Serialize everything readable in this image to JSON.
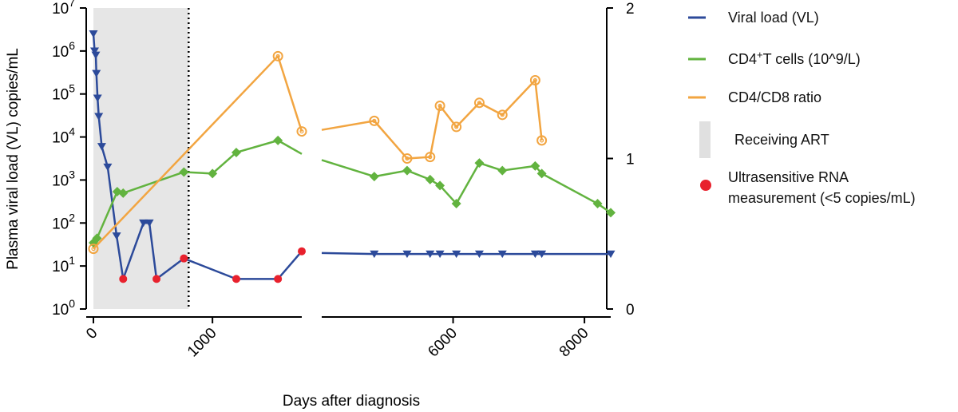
{
  "chart_data": {
    "type": "line",
    "ylabel": "Plasma viral load (VL) copies/mL",
    "xlabel": "Days after diagnosis",
    "left_axis": {
      "scale": "log10",
      "ylim": [
        1,
        10000000
      ],
      "ticks": [
        {
          "base": "10",
          "exp": "0",
          "value": 1
        },
        {
          "base": "10",
          "exp": "1",
          "value": 10
        },
        {
          "base": "10",
          "exp": "2",
          "value": 100
        },
        {
          "base": "10",
          "exp": "3",
          "value": 1000
        },
        {
          "base": "10",
          "exp": "4",
          "value": 10000
        },
        {
          "base": "10",
          "exp": "5",
          "value": 100000
        },
        {
          "base": "10",
          "exp": "6",
          "value": 1000000
        },
        {
          "base": "10",
          "exp": "7",
          "value": 10000000
        }
      ]
    },
    "right_axis": {
      "scale": "linear",
      "ylim": [
        0,
        2
      ],
      "ticks": [
        {
          "label": "0",
          "value": 0
        },
        {
          "label": "1",
          "value": 1
        },
        {
          "label": "2",
          "value": 2
        }
      ]
    },
    "x_axis": {
      "broken": true,
      "segments": [
        {
          "xlim": [
            0,
            1750
          ]
        },
        {
          "xlim": [
            4000,
            8400
          ]
        }
      ],
      "ticks": [
        {
          "label": "0",
          "value": 0
        },
        {
          "label": "1000",
          "value": 1000
        },
        {
          "label": "6000",
          "value": 6000
        },
        {
          "label": "8000",
          "value": 8000
        }
      ]
    },
    "shaded_region": {
      "x": [
        0,
        800
      ],
      "color": "#e6e6e6"
    },
    "vertical_line": {
      "x": 800,
      "style": "dotted"
    },
    "legend_position": "right",
    "legend": [
      {
        "key": "vl",
        "label": "Viral load (VL)",
        "color": "#2c4a9a",
        "kind": "line"
      },
      {
        "key": "cd4",
        "label_main": "CD4",
        "label_sup": "+",
        "label_rest": "T cells (10^9/L)",
        "color": "#62b33f",
        "kind": "line"
      },
      {
        "key": "ratio",
        "label": "CD4/CD8 ratio",
        "color": "#f2a541",
        "kind": "line"
      },
      {
        "key": "art",
        "label": "Receiving ART",
        "color": "#e0e0e0",
        "kind": "box"
      },
      {
        "key": "ultra",
        "label_lines": [
          "Ultrasensitive RNA",
          "measurement (<5 copies/mL)"
        ],
        "color": "#e8212d",
        "kind": "dot"
      }
    ],
    "series": [
      {
        "name": "Viral load (VL)",
        "axis": "left",
        "color": "#2c4a9a",
        "marker": "triangle-down",
        "segments": [
          [
            {
              "x": 0,
              "y": 2500000
            },
            {
              "x": 10,
              "y": 1000000
            },
            {
              "x": 20,
              "y": 800000
            },
            {
              "x": 25,
              "y": 300000
            },
            {
              "x": 35,
              "y": 80000
            },
            {
              "x": 45,
              "y": 30000
            },
            {
              "x": 70,
              "y": 6000
            },
            {
              "x": 120,
              "y": 2000
            },
            {
              "x": 195,
              "y": 50
            },
            {
              "x": 250,
              "y": 5,
              "ultra": true
            },
            {
              "x": 420,
              "y": 100
            },
            {
              "x": 470,
              "y": 100
            },
            {
              "x": 530,
              "y": 5,
              "ultra": true
            },
            {
              "x": 760,
              "y": 15,
              "ultra": true
            },
            {
              "x": 1200,
              "y": 5,
              "ultra": true
            },
            {
              "x": 1550,
              "y": 5,
              "ultra": true
            },
            {
              "x": 1750,
              "y": 22,
              "ultra": true
            }
          ],
          [
            {
              "x": 4000,
              "y": 20,
              "nomarker": true
            },
            {
              "x": 4800,
              "y": 19
            },
            {
              "x": 5300,
              "y": 19
            },
            {
              "x": 5650,
              "y": 19
            },
            {
              "x": 5800,
              "y": 19
            },
            {
              "x": 6050,
              "y": 19
            },
            {
              "x": 6400,
              "y": 19
            },
            {
              "x": 6750,
              "y": 19
            },
            {
              "x": 7250,
              "y": 19
            },
            {
              "x": 7350,
              "y": 19
            },
            {
              "x": 8400,
              "y": 19
            }
          ]
        ]
      },
      {
        "name": "CD4+T cells (10^9/L)",
        "axis": "right",
        "color": "#62b33f",
        "marker": "diamond",
        "segments": [
          [
            {
              "x": 0,
              "y": 0.44
            },
            {
              "x": 30,
              "y": 0.47
            },
            {
              "x": 200,
              "y": 0.78
            },
            {
              "x": 250,
              "y": 0.77
            },
            {
              "x": 760,
              "y": 0.91
            },
            {
              "x": 1000,
              "y": 0.9
            },
            {
              "x": 1200,
              "y": 1.04
            },
            {
              "x": 1550,
              "y": 1.12
            },
            {
              "x": 1750,
              "y": 1.03,
              "nomarker": true
            }
          ],
          [
            {
              "x": 4000,
              "y": 0.99,
              "nomarker": true
            },
            {
              "x": 4800,
              "y": 0.88
            },
            {
              "x": 5300,
              "y": 0.92
            },
            {
              "x": 5650,
              "y": 0.86
            },
            {
              "x": 5800,
              "y": 0.82
            },
            {
              "x": 6050,
              "y": 0.7
            },
            {
              "x": 6400,
              "y": 0.97
            },
            {
              "x": 6750,
              "y": 0.92
            },
            {
              "x": 7250,
              "y": 0.95
            },
            {
              "x": 7350,
              "y": 0.9
            },
            {
              "x": 8200,
              "y": 0.7
            },
            {
              "x": 8400,
              "y": 0.64
            }
          ]
        ]
      },
      {
        "name": "CD4/CD8 ratio",
        "axis": "right",
        "color": "#f2a541",
        "marker": "circle-open",
        "segments": [
          [
            {
              "x": 0,
              "y": 0.4
            },
            {
              "x": 1550,
              "y": 1.68
            },
            {
              "x": 1750,
              "y": 1.18
            }
          ],
          [
            {
              "x": 4000,
              "y": 1.19,
              "nomarker": true
            },
            {
              "x": 4800,
              "y": 1.25
            },
            {
              "x": 5300,
              "y": 1.0
            },
            {
              "x": 5650,
              "y": 1.01
            },
            {
              "x": 5800,
              "y": 1.35
            },
            {
              "x": 6050,
              "y": 1.21
            },
            {
              "x": 6400,
              "y": 1.37
            },
            {
              "x": 6750,
              "y": 1.29
            },
            {
              "x": 7250,
              "y": 1.52
            },
            {
              "x": 7350,
              "y": 1.12
            }
          ]
        ]
      }
    ]
  }
}
